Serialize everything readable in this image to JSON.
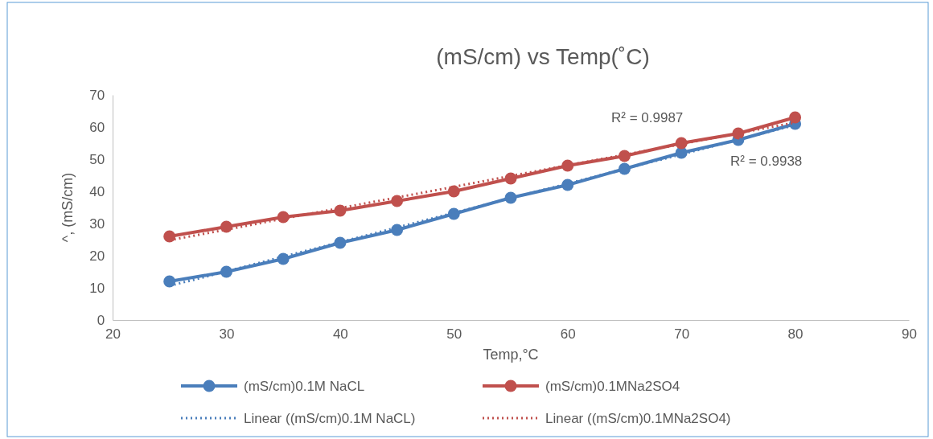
{
  "chart_data": {
    "type": "line",
    "title": "(mS/cm) vs Temp(˚C)",
    "xlabel": "Temp,°C",
    "ylabel": "^, (mS/cm)",
    "x": [
      25,
      30,
      35,
      40,
      45,
      50,
      55,
      60,
      65,
      70,
      75,
      80
    ],
    "series": [
      {
        "name": "(mS/cm)0.1M NaCL",
        "color": "#4a7ebb",
        "marker": "circle",
        "line_style": "solid",
        "values": [
          12,
          15,
          19,
          24,
          28,
          33,
          38,
          42,
          47,
          52,
          56,
          61
        ]
      },
      {
        "name": "(mS/cm)0.1MNa2SO4",
        "color": "#c0504d",
        "marker": "circle",
        "line_style": "solid",
        "values": [
          26,
          29,
          32,
          34,
          37,
          40,
          44,
          48,
          51,
          55,
          58,
          63
        ]
      },
      {
        "name": "Linear ((mS/cm)0.1M NaCL)",
        "color": "#4a7ebb",
        "marker": "none",
        "line_style": "dotted",
        "values": [
          10.6,
          15.1,
          19.7,
          24.2,
          28.8,
          33.3,
          37.9,
          42.4,
          47.0,
          51.5,
          56.1,
          60.6
        ]
      },
      {
        "name": "Linear ((mS/cm)0.1MNa2SO4)",
        "color": "#c0504d",
        "marker": "none",
        "line_style": "dotted",
        "values": [
          24.8,
          28.1,
          31.5,
          34.8,
          38.1,
          41.4,
          44.8,
          48.1,
          51.4,
          54.7,
          58.1,
          61.4
        ]
      }
    ],
    "annotations": [
      "R² = 0.9987",
      "R² = 0.9938"
    ],
    "xlim": [
      20,
      90
    ],
    "xticks": [
      20,
      30,
      40,
      50,
      60,
      70,
      80,
      90
    ],
    "ylim": [
      0,
      70
    ],
    "yticks": [
      0,
      10,
      20,
      30,
      40,
      50,
      60,
      70
    ],
    "grid": false,
    "legend": "bottom"
  }
}
